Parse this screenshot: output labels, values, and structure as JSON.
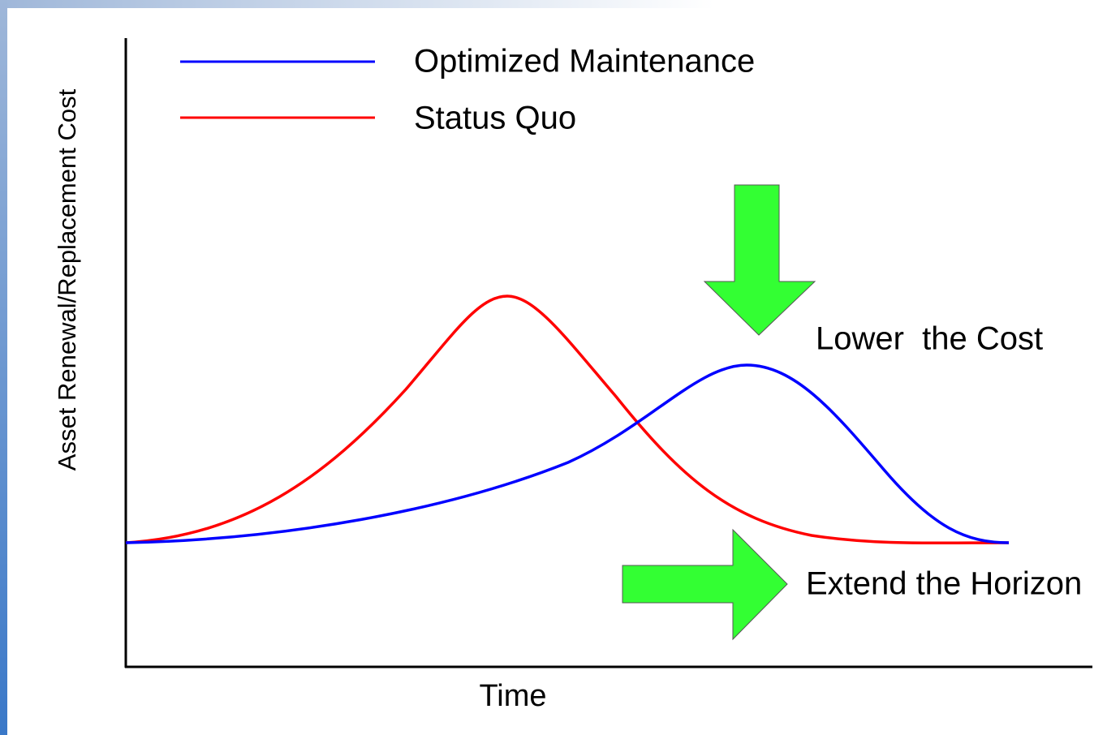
{
  "legend": {
    "items": [
      {
        "label": "Optimized Maintenance",
        "color": "#0000ff"
      },
      {
        "label": "Status Quo",
        "color": "#ff0000"
      }
    ]
  },
  "axes": {
    "y_label": "Asset Renewal/Replacement Cost",
    "x_label": "Time"
  },
  "annotations": {
    "lower": "Lower  the Cost",
    "extend": "Extend the Horizon"
  }
}
